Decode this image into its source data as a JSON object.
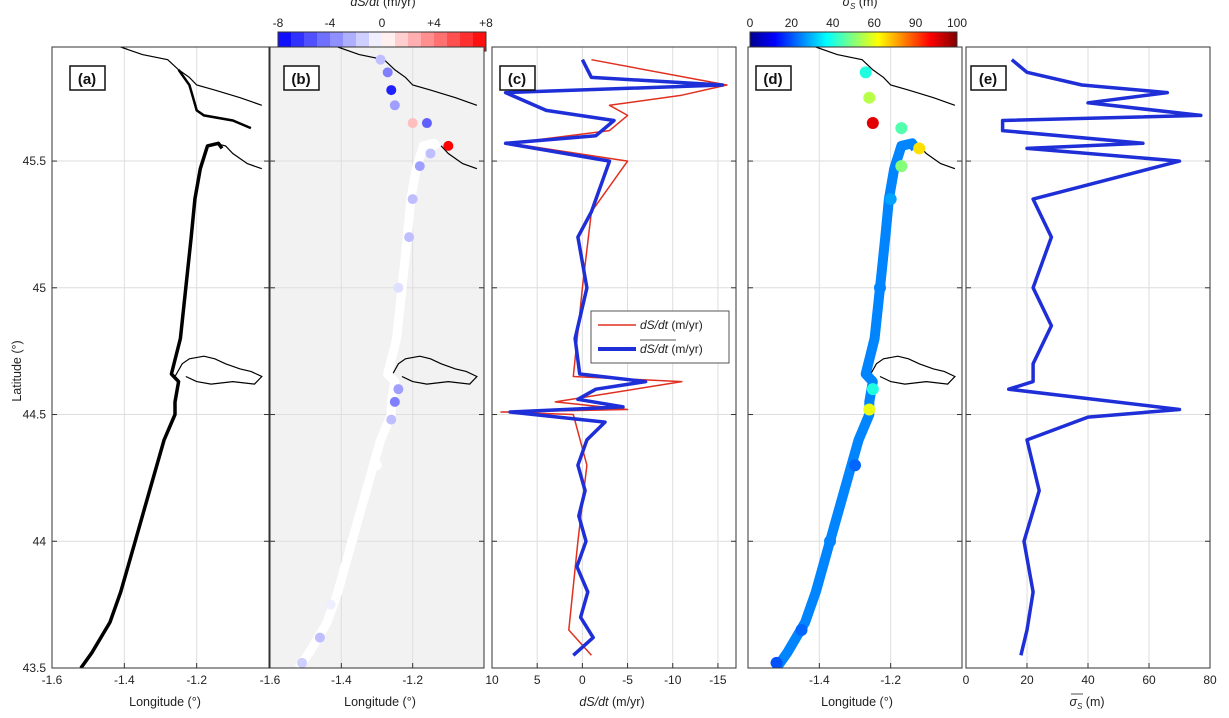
{
  "chart_data": [
    {
      "type": "line",
      "panel": "(a)",
      "xlabel": "Longitude (°)",
      "ylabel": "Latitude (°)",
      "xlim": [
        -1.6,
        -1.0
      ],
      "ylim": [
        43.5,
        45.95
      ],
      "xticks": [
        "-1.6",
        "-1.4",
        "-1.2"
      ],
      "yticks": [
        "43.5",
        "44",
        "44.5",
        "45",
        "45.5"
      ],
      "grid": true,
      "series": [
        {
          "values": [
            [
              -1.52,
              43.5
            ],
            [
              -1.49,
              43.56
            ],
            [
              -1.44,
              43.68
            ],
            [
              -1.41,
              43.8
            ],
            [
              -1.37,
              44.0
            ],
            [
              -1.33,
              44.2
            ],
            [
              -1.29,
              44.4
            ],
            [
              -1.26,
              44.5
            ],
            [
              -1.26,
              44.55
            ],
            [
              -1.25,
              44.63
            ],
            [
              -1.27,
              44.66
            ],
            [
              -1.245,
              44.8
            ],
            [
              -1.23,
              45.0
            ],
            [
              -1.215,
              45.2
            ],
            [
              -1.205,
              45.35
            ],
            [
              -1.19,
              45.47
            ],
            [
              -1.17,
              45.56
            ],
            [
              -1.14,
              45.57
            ],
            [
              -1.13,
              45.55
            ]
          ]
        }
      ]
    },
    {
      "type": "scatter",
      "panel": "(b)",
      "xlabel": "Longitude (°)",
      "xlim": [
        -1.6,
        -1.0
      ],
      "xticks": [
        "-1.6",
        "-1.4",
        "-1.2"
      ],
      "colorbar": {
        "label": "dS/dt (m/yr)",
        "ticks": [
          "-8",
          "-4",
          "0",
          "+4",
          "+8"
        ],
        "range": [
          -8,
          8
        ]
      },
      "series": [
        {
          "values": [
            [
              -1.51,
              43.52,
              -1.5
            ],
            [
              -1.46,
              43.62,
              -2
            ],
            [
              -1.43,
              43.75,
              -0.5
            ],
            [
              -1.37,
              44.0,
              0
            ],
            [
              -1.3,
              44.3,
              0
            ],
            [
              -1.26,
              44.48,
              -2
            ],
            [
              -1.25,
              44.55,
              -4
            ],
            [
              -1.24,
              44.6,
              -3
            ],
            [
              -1.24,
              45.0,
              -1
            ],
            [
              -1.21,
              45.2,
              -2
            ],
            [
              -1.2,
              45.35,
              -2
            ],
            [
              -1.18,
              45.48,
              -3
            ],
            [
              -1.15,
              45.53,
              -2
            ],
            [
              -1.1,
              45.56,
              8
            ],
            [
              -1.16,
              45.65,
              -5
            ],
            [
              -1.2,
              45.65,
              2
            ],
            [
              -1.25,
              45.72,
              -3
            ],
            [
              -1.26,
              45.78,
              -7
            ],
            [
              -1.27,
              45.85,
              -4
            ],
            [
              -1.29,
              45.9,
              -2
            ]
          ]
        }
      ]
    },
    {
      "type": "line",
      "panel": "(c)",
      "xlabel": "dS/dt (m/yr)",
      "xlim": [
        10,
        -17
      ],
      "xticks": [
        "10",
        "5",
        "0",
        "-5",
        "-10",
        "-15"
      ],
      "legend": {
        "placement": "right-center",
        "entries": [
          "dS/dt (m/yr)",
          "dS/dt (m/yr)"
        ]
      },
      "series": [
        {
          "color": "#e03020",
          "values": [
            [
              -1.0,
              43.55
            ],
            [
              1.5,
              43.65
            ],
            [
              0.5,
              44.0
            ],
            [
              -0.5,
              44.3
            ],
            [
              1.0,
              44.5
            ],
            [
              9,
              44.51
            ],
            [
              -5,
              44.52
            ],
            [
              3,
              44.55
            ],
            [
              -11,
              44.63
            ],
            [
              1,
              44.65
            ],
            [
              0,
              45.0
            ],
            [
              -1,
              45.3
            ],
            [
              -5,
              45.5
            ],
            [
              8,
              45.57
            ],
            [
              -3,
              45.62
            ],
            [
              -5,
              45.68
            ],
            [
              -3,
              45.72
            ],
            [
              -11,
              45.76
            ],
            [
              -16,
              45.8
            ],
            [
              -1,
              45.9
            ]
          ]
        },
        {
          "color": "#1f2fd8",
          "values": [
            [
              1.0,
              43.55
            ],
            [
              -1.2,
              43.62
            ],
            [
              0.2,
              43.7
            ],
            [
              -0.6,
              43.8
            ],
            [
              0.6,
              43.9
            ],
            [
              -0.4,
              44.0
            ],
            [
              0.4,
              44.1
            ],
            [
              -0.3,
              44.2
            ],
            [
              0.5,
              44.3
            ],
            [
              -0.5,
              44.4
            ],
            [
              -2.5,
              44.47
            ],
            [
              8,
              44.51
            ],
            [
              -4.5,
              44.53
            ],
            [
              0.5,
              44.56
            ],
            [
              -1.5,
              44.6
            ],
            [
              -7,
              44.63
            ],
            [
              0.3,
              44.66
            ],
            [
              0.8,
              44.8
            ],
            [
              -0.5,
              45.0
            ],
            [
              0.5,
              45.2
            ],
            [
              -1.0,
              45.3
            ],
            [
              -3.0,
              45.5
            ],
            [
              8.5,
              45.57
            ],
            [
              -1.5,
              45.6
            ],
            [
              -3.5,
              45.66
            ],
            [
              4.0,
              45.7
            ],
            [
              -15.5,
              45.8
            ],
            [
              8.5,
              45.77
            ],
            [
              -1.0,
              45.83
            ],
            [
              0.0,
              45.9
            ]
          ]
        }
      ]
    },
    {
      "type": "scatter",
      "panel": "(d)",
      "xlabel": "Longitude (°)",
      "xlim": [
        -1.6,
        -1.0
      ],
      "xticks": [
        "-1.4",
        "-1.2"
      ],
      "colorbar": {
        "label": "σS (m)",
        "ticks": [
          "0",
          "20",
          "40",
          "60",
          "90",
          "100"
        ],
        "range": [
          0,
          100
        ]
      },
      "series": [
        {
          "values": [
            [
              -1.52,
              43.52,
              20
            ],
            [
              -1.45,
              43.65,
              22
            ],
            [
              -1.37,
              44.0,
              25
            ],
            [
              -1.3,
              44.3,
              22
            ],
            [
              -1.26,
              44.52,
              60
            ],
            [
              -1.25,
              44.6,
              40
            ],
            [
              -1.23,
              45.0,
              25
            ],
            [
              -1.2,
              45.35,
              28
            ],
            [
              -1.17,
              45.48,
              50
            ],
            [
              -1.12,
              45.55,
              65
            ],
            [
              -1.17,
              45.63,
              45
            ],
            [
              -1.25,
              45.65,
              90
            ],
            [
              -1.26,
              45.75,
              55
            ],
            [
              -1.27,
              45.85,
              40
            ]
          ]
        }
      ]
    },
    {
      "type": "line",
      "panel": "(e)",
      "xlabel": "σS (m)",
      "xlim": [
        0,
        80
      ],
      "xticks": [
        "0",
        "20",
        "40",
        "60",
        "80"
      ],
      "series": [
        {
          "color": "#1f2fd8",
          "values": [
            [
              18,
              43.55
            ],
            [
              20,
              43.65
            ],
            [
              22,
              43.8
            ],
            [
              19,
              44.0
            ],
            [
              24,
              44.2
            ],
            [
              20,
              44.4
            ],
            [
              40,
              44.49
            ],
            [
              70,
              44.52
            ],
            [
              14,
              44.6
            ],
            [
              22,
              44.63
            ],
            [
              22,
              44.7
            ],
            [
              28,
              44.85
            ],
            [
              22,
              45.0
            ],
            [
              28,
              45.2
            ],
            [
              22,
              45.35
            ],
            [
              70,
              45.5
            ],
            [
              20,
              45.55
            ],
            [
              58,
              45.57
            ],
            [
              12,
              45.62
            ],
            [
              12,
              45.66
            ],
            [
              77,
              45.68
            ],
            [
              40,
              45.73
            ],
            [
              66,
              45.77
            ],
            [
              38,
              45.8
            ],
            [
              20,
              45.85
            ],
            [
              15,
              45.9
            ]
          ]
        }
      ]
    }
  ],
  "labels": {
    "panel_a": "(a)",
    "panel_b": "(b)",
    "panel_c": "(c)",
    "panel_d": "(d)",
    "panel_e": "(e)",
    "ylabel": "Latitude (°)",
    "xlabel_lon": "Longitude (°)",
    "xlabel_c_italic": "dS/dt",
    "xlabel_c_unit": " (m/yr)",
    "xlabel_e_unit": " (m)",
    "cb1_title_italic": "dS/dt",
    "cb1_title_unit": " (m/yr)",
    "cb2_title_unit": " (m)",
    "legend_1_italic": "dS/dt",
    "legend_1_unit": " (m/yr)",
    "legend_2_italic": "dS/dt",
    "legend_2_unit": " (m/yr)"
  }
}
